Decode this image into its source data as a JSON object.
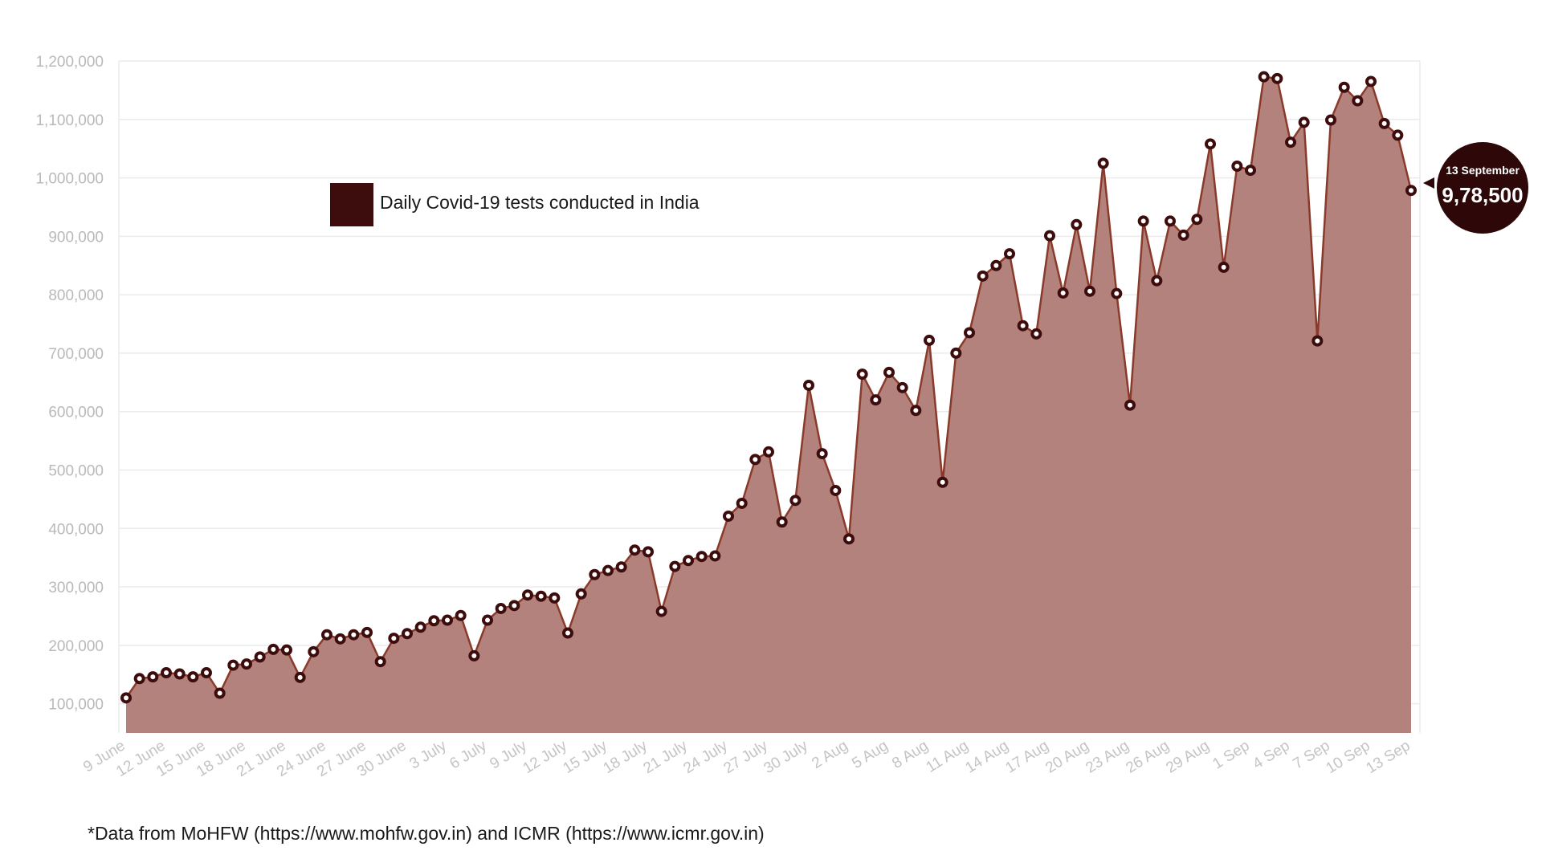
{
  "chart_data": {
    "type": "area",
    "title": "",
    "xlabel": "",
    "ylabel": "",
    "ylim": [
      50000,
      1200000
    ],
    "grid": true,
    "y_ticks": [
      "1,200,000",
      "1,100,000",
      "1,000,000",
      "900,000",
      "800,000",
      "700,000",
      "600,000",
      "500,000",
      "400,000",
      "300,000",
      "200,000",
      "100,000"
    ],
    "y_tick_values": [
      1200000,
      1100000,
      1000000,
      900000,
      800000,
      700000,
      600000,
      500000,
      400000,
      300000,
      200000,
      100000
    ],
    "x_tick_labels": [
      "9 June",
      "12 June",
      "15 June",
      "18 June",
      "21 June",
      "24 June",
      "27 June",
      "30 June",
      "3 July",
      "6 July",
      "9 July",
      "12 July",
      "15 July",
      "18 July",
      "21 July",
      "24 July",
      "27 July",
      "30 July",
      "2 Aug",
      "5 Aug",
      "8 Aug",
      "11 Aug",
      "14 Aug",
      "17 Aug",
      "20 Aug",
      "23 Aug",
      "26 Aug",
      "29 Aug",
      "1 Sep",
      "4 Sep",
      "7 Sep",
      "10 Sep",
      "13 Sep"
    ],
    "x_range": [
      "9 June",
      "13 Sep"
    ],
    "series": [
      {
        "name": "Daily Covid-19 tests conducted in India",
        "color": "#3d0c0c",
        "fill_color": "#b3827c",
        "line_color": "#8a3a2a",
        "values": [
          110000,
          143000,
          146000,
          153000,
          151000,
          146000,
          153000,
          118000,
          166000,
          168000,
          180000,
          193000,
          192000,
          145000,
          189000,
          218000,
          211000,
          218000,
          222000,
          172000,
          212000,
          220000,
          231000,
          242000,
          243000,
          251000,
          182000,
          243000,
          263000,
          268000,
          286000,
          284000,
          281000,
          221000,
          288000,
          321000,
          328000,
          334000,
          363000,
          360000,
          258000,
          335000,
          345000,
          352000,
          353000,
          421000,
          443000,
          518000,
          531000,
          411000,
          448000,
          645000,
          528000,
          465000,
          382000,
          664000,
          620000,
          667000,
          641000,
          602000,
          722000,
          479000,
          700000,
          735000,
          832000,
          850000,
          870000,
          747000,
          733000,
          901000,
          803000,
          920000,
          806000,
          1025000,
          802000,
          611000,
          926000,
          824000,
          926000,
          902000,
          929000,
          1058000,
          847000,
          1020000,
          1013000,
          1173000,
          1170000,
          1061000,
          1095000,
          721000,
          1099000,
          1155000,
          1132000,
          1165000,
          1093000,
          1073000,
          978500
        ]
      }
    ],
    "legend_position": "top-left",
    "callout": {
      "date": "13 September",
      "value": "9,78,500"
    }
  },
  "footnote": "*Data from MoHFW (https://www.mohfw.gov.in) and ICMR (https://www.icmr.gov.in)"
}
